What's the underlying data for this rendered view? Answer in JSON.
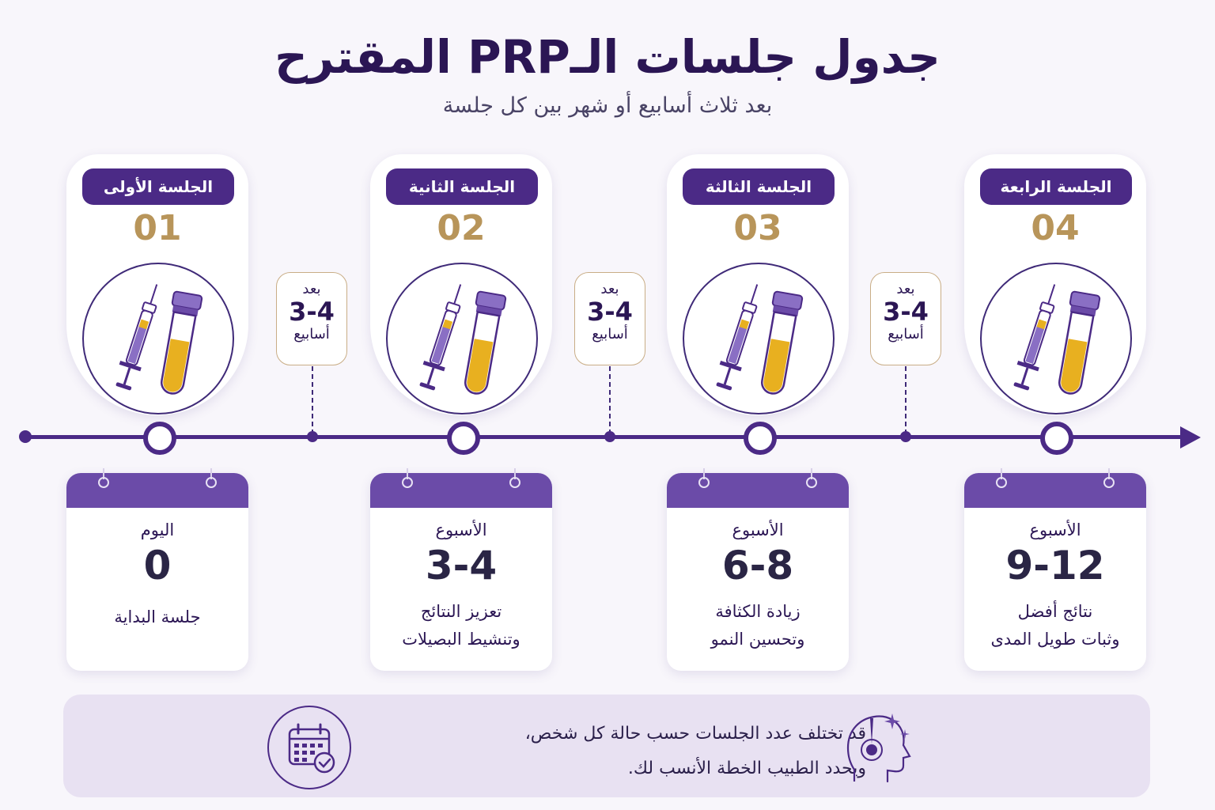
{
  "header": {
    "title": "جدول جلسات الـPRP المقترح",
    "subtitle": "بعد ثلاث أسابيع أو شهر بين كل جلسة"
  },
  "sessions": [
    {
      "label": "الجلسة الأولى",
      "number": "01"
    },
    {
      "label": "الجلسة الثانية",
      "number": "02"
    },
    {
      "label": "الجلسة الثالثة",
      "number": "03"
    },
    {
      "label": "الجلسة الرابعة",
      "number": "04"
    }
  ],
  "intervals": [
    {
      "top": "بعد",
      "range": "3-4",
      "unit": "أسابيع"
    },
    {
      "top": "بعد",
      "range": "3-4",
      "unit": "أسابيع"
    },
    {
      "top": "بعد",
      "range": "3-4",
      "unit": "أسابيع"
    }
  ],
  "calendars": [
    {
      "week_label": "اليوم",
      "range": "0",
      "desc_line1": "جلسة البداية",
      "desc_line2": ""
    },
    {
      "week_label": "الأسبوع",
      "range": "3-4",
      "desc_line1": "تعزيز النتائج",
      "desc_line2": "وتنشيط البصيلات"
    },
    {
      "week_label": "الأسبوع",
      "range": "6-8",
      "desc_line1": "زيادة الكثافة",
      "desc_line2": "وتحسين النمو"
    },
    {
      "week_label": "الأسبوع",
      "range": "9-12",
      "desc_line1": "نتائج أفضل",
      "desc_line2": "وثبات طويل المدى"
    }
  ],
  "note": {
    "line1": "قد تختلف عدد الجلسات حسب حالة كل شخص،",
    "line2": "ويحدد الطبيب الخطة الأنسب لك."
  },
  "icons": {
    "session": "syringe-and-blood-tube-icon",
    "note_left": "calendar-check-icon",
    "note_right": "head-hair-follicle-icon"
  },
  "colors": {
    "primary": "#4b2a86",
    "accent_gold": "#b8955a",
    "plasma": "#e8b020",
    "background": "#f8f6fb"
  }
}
